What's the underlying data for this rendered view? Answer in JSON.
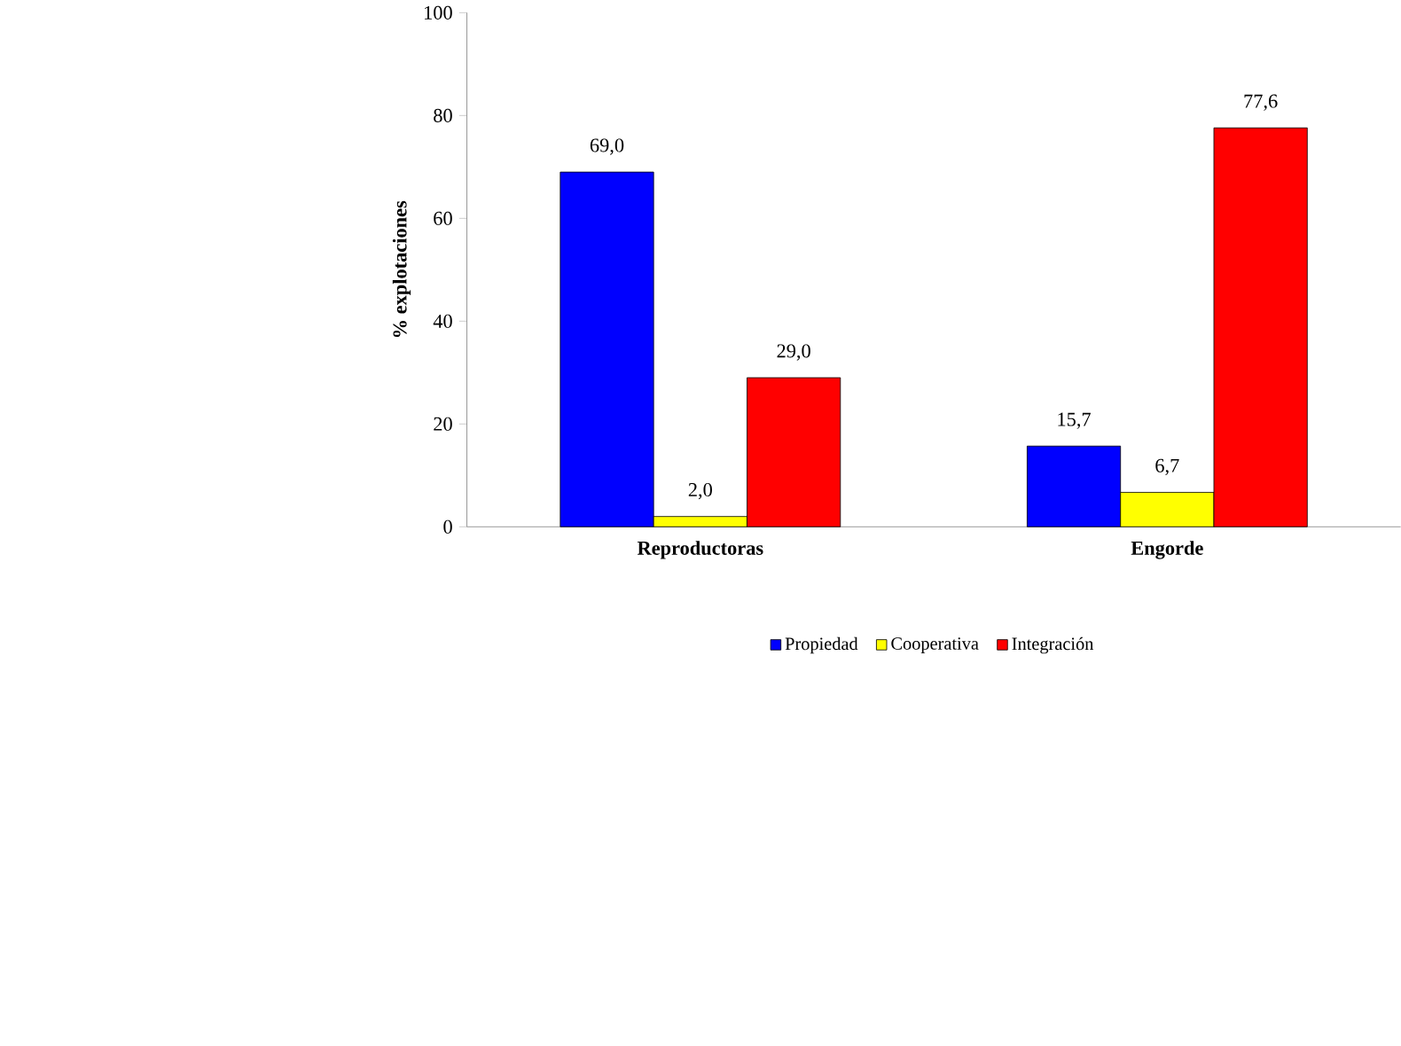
{
  "chart_data": {
    "type": "bar",
    "ylabel": "% explotaciones",
    "categories": [
      "Reproductoras",
      "Engorde"
    ],
    "series": [
      {
        "name": "Propiedad",
        "color": "#0000ff",
        "values": [
          69.0,
          15.7
        ],
        "value_labels": [
          "69,0",
          "15,7"
        ]
      },
      {
        "name": "Cooperativa",
        "color": "#ffff00",
        "values": [
          2.0,
          6.7
        ],
        "value_labels": [
          "2,0",
          "6,7"
        ]
      },
      {
        "name": "Integración",
        "color": "#ff0000",
        "values": [
          29.0,
          77.6
        ],
        "value_labels": [
          "29,0",
          "77,6"
        ]
      }
    ],
    "ylim": [
      0,
      100
    ],
    "yticks": [
      0,
      20,
      40,
      60,
      80,
      100
    ],
    "legend": "bottom"
  }
}
